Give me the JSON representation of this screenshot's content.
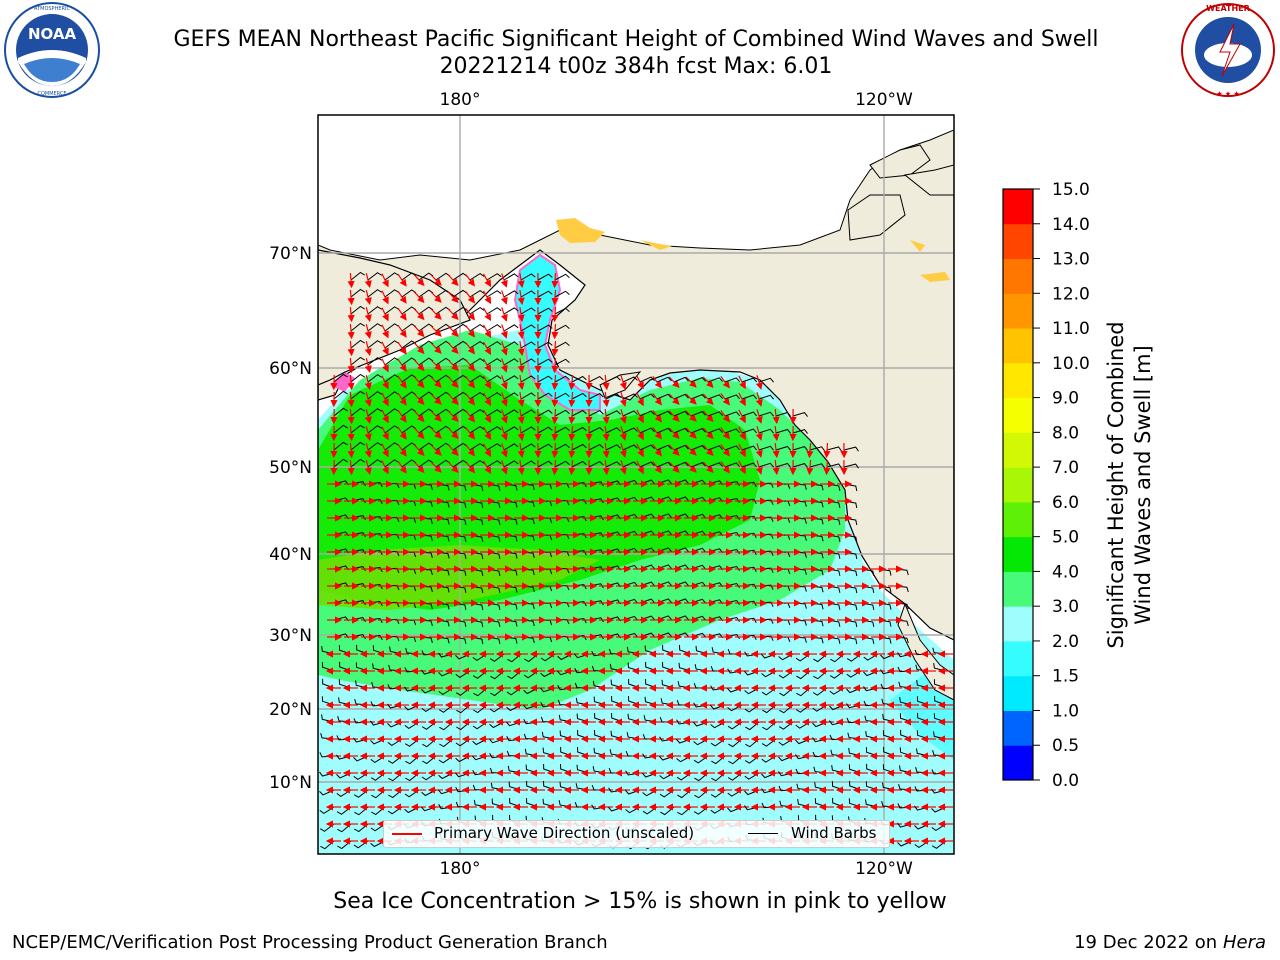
{
  "header": {
    "title_line1": "GEFS MEAN Northeast Pacific Significant Height of Combined Wind Waves and Swell",
    "title_line2": "20221214 t00z 384h fcst   Max: 6.01"
  },
  "logos": {
    "left": {
      "icon": "noaa-logo",
      "text": "NOAA",
      "ring_text": "NATIONAL OCEANIC AND ATMOSPHERIC ADMINISTRATION · U.S. DEPARTMENT OF COMMERCE"
    },
    "right": {
      "icon": "nws-logo",
      "ring_text": "NATIONAL WEATHER SERVICE"
    }
  },
  "map": {
    "lon_labels": [
      "180°",
      "120°W"
    ],
    "lat_labels": [
      "70°N",
      "60°N",
      "50°N",
      "40°N",
      "30°N",
      "20°N",
      "10°N"
    ],
    "colors": {
      "land": "#efecdc",
      "ocean_low": "#9ffdfd",
      "ocean_mid": "#48fa7a",
      "ocean_high": "#14eb06",
      "ocean_peak": "#6bdf06",
      "arrow": "#ff0000",
      "barb": "#000000",
      "ice_pink": "#ff66cc",
      "ice_yellow": "#ffcc44"
    }
  },
  "legend": {
    "wave_direction": "Primary Wave Direction (unscaled)",
    "wind_barbs": "Wind Barbs"
  },
  "colorbar": {
    "label_line1": "Significant Height of Combined",
    "label_line2": "Wind Waves and Swell [m]",
    "ticks": [
      "0.0",
      "0.5",
      "1.0",
      "1.5",
      "2.0",
      "3.0",
      "4.0",
      "5.0",
      "6.0",
      "7.0",
      "8.0",
      "9.0",
      "10.0",
      "11.0",
      "12.0",
      "13.0",
      "14.0",
      "15.0"
    ],
    "colors": [
      "#0000ff",
      "#0065ff",
      "#00eaff",
      "#34fcff",
      "#9ffdfd",
      "#48fa7a",
      "#05e805",
      "#5ef006",
      "#a9f606",
      "#d3f806",
      "#f5ff00",
      "#ffe700",
      "#ffc300",
      "#ff9600",
      "#ff7600",
      "#ff4500",
      "#ff0000"
    ]
  },
  "footer": {
    "note": "Sea Ice Concentration > 15% is shown in pink to yellow",
    "credit": "NCEP/EMC/Verification Post Processing Product Generation Branch",
    "date": "19 Dec 2022 on",
    "machine": "Hera"
  }
}
